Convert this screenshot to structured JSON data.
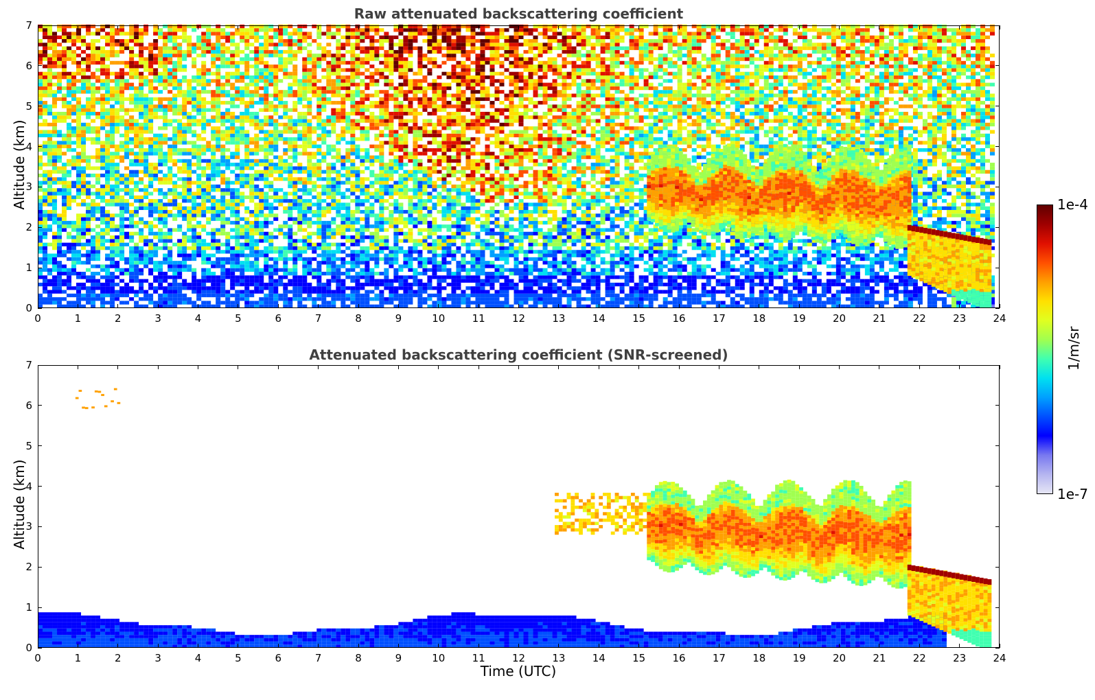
{
  "colors": {
    "colormap": [
      "#e6e6f5",
      "#b4b4f0",
      "#7878f0",
      "#0000ff",
      "#0050ff",
      "#00a0ff",
      "#00e0f0",
      "#40ffb0",
      "#a0ff50",
      "#e0ff20",
      "#ffe000",
      "#ffa000",
      "#ff5000",
      "#e01000",
      "#a00000",
      "#600000"
    ],
    "title_color": "#404040"
  },
  "chart_data": [
    {
      "type": "heatmap",
      "title": "Raw attenuated backscattering coefficient",
      "xlabel": "",
      "ylabel": "Altitude (km)",
      "xlim": [
        0,
        24
      ],
      "ylim": [
        0,
        7
      ],
      "xticks": [
        "0",
        "1",
        "2",
        "3",
        "4",
        "5",
        "6",
        "7",
        "8",
        "9",
        "10",
        "11",
        "12",
        "13",
        "14",
        "15",
        "16",
        "17",
        "18",
        "19",
        "20",
        "21",
        "22",
        "23",
        "24"
      ],
      "yticks": [
        "0",
        "1",
        "2",
        "3",
        "4",
        "5",
        "6",
        "7"
      ],
      "grid": false,
      "features": [
        {
          "kind": "boundary_layer",
          "time": [
            0,
            22.5
          ],
          "altitude": [
            0,
            0.8
          ],
          "level": "1e-6"
        },
        {
          "kind": "aerosol_layer_upper",
          "time": [
            7,
            15
          ],
          "altitude": [
            2.6,
            7
          ],
          "level": "noisy 1e-5 to 5e-5"
        },
        {
          "kind": "cloud_layer",
          "time": [
            15.2,
            21.8
          ],
          "altitude": [
            1.7,
            4.0
          ],
          "level": "1e-5 to 5e-5"
        },
        {
          "kind": "cloud_thin_top",
          "time": [
            21.7,
            23.5
          ],
          "altitude": [
            1.6,
            2.0
          ],
          "level": "1e-4"
        },
        {
          "kind": "precipitation_fall",
          "time": [
            21.7,
            23.8
          ],
          "altitude": [
            0,
            2.0
          ],
          "level": "1e-5"
        }
      ]
    },
    {
      "type": "heatmap",
      "title": "Attenuated backscattering coefficient (SNR-screened)",
      "xlabel": "Time (UTC)",
      "ylabel": "Altitude (km)",
      "xlim": [
        0,
        24
      ],
      "ylim": [
        0,
        7
      ],
      "xticks": [
        "0",
        "1",
        "2",
        "3",
        "4",
        "5",
        "6",
        "7",
        "8",
        "9",
        "10",
        "11",
        "12",
        "13",
        "14",
        "15",
        "16",
        "17",
        "18",
        "19",
        "20",
        "21",
        "22",
        "23",
        "24"
      ],
      "yticks": [
        "0",
        "1",
        "2",
        "3",
        "4",
        "5",
        "6",
        "7"
      ],
      "grid": false,
      "features": [
        {
          "kind": "boundary_layer",
          "time": [
            0,
            22.5
          ],
          "altitude": [
            0,
            0.85
          ],
          "level": "1e-6"
        },
        {
          "kind": "small_patch",
          "time": [
            0.7,
            2.3
          ],
          "altitude": [
            5.9,
            6.5
          ],
          "level": "1e-5"
        },
        {
          "kind": "aerosol_layer",
          "time": [
            12.9,
            15.2
          ],
          "altitude": [
            2.8,
            3.8
          ],
          "level": "2e-5"
        },
        {
          "kind": "cloud_layer",
          "time": [
            15.2,
            21.8
          ],
          "altitude": [
            1.6,
            4.1
          ],
          "level": "1e-5 to 5e-5"
        },
        {
          "kind": "cloud_thin_top",
          "time": [
            21.7,
            23.5
          ],
          "altitude": [
            1.6,
            2.0
          ],
          "level": "1e-4"
        },
        {
          "kind": "precipitation_fall",
          "time": [
            21.7,
            23.8
          ],
          "altitude": [
            0,
            2.0
          ],
          "level": "1e-5"
        }
      ]
    }
  ],
  "colorbar": {
    "max_label": "1e-4",
    "min_label": "1e-7",
    "unit_label": "1/m/sr"
  }
}
